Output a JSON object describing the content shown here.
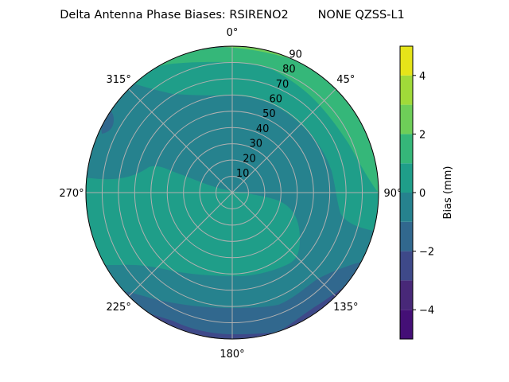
{
  "chart_data": {
    "type": "heatmap",
    "subtype": "polar-filled-contour",
    "title": "Delta Antenna Phase Biases: RSIRENO2        NONE QZSS-L1",
    "angular_ticks": [
      "0°",
      "45°",
      "90°",
      "135°",
      "180°",
      "225°",
      "270°",
      "315°"
    ],
    "radial_ticks": [
      10,
      20,
      30,
      40,
      50,
      60,
      70,
      80,
      90
    ],
    "radial_range": [
      0,
      90
    ],
    "grid": true,
    "colorbar": {
      "label": "Bias (mm)",
      "range": [
        -5,
        5
      ],
      "ticks": [
        -4,
        -2,
        0,
        2,
        4
      ],
      "tick_labels": [
        "−4",
        "−2",
        "0",
        "2",
        "4"
      ],
      "levels": [
        -5,
        -4,
        -3,
        -2,
        -1,
        0,
        1,
        2,
        3,
        4,
        5
      ],
      "colors": [
        "#440f76",
        "#482878",
        "#3e4989",
        "#31688e",
        "#26828e",
        "#1f9e89",
        "#35b779",
        "#6ece58",
        "#a0da39",
        "#e5e419"
      ],
      "colormap": "viridis"
    },
    "regions": [
      {
        "level": "-1..0",
        "description": "center, upper-left and right-center band",
        "color": "#26828e"
      },
      {
        "level": "0..1",
        "description": "lower-left / south sector and north-east ring",
        "color": "#1f9e89"
      },
      {
        "level": "1..2",
        "description": "north-east edge",
        "color": "#35b779"
      },
      {
        "level": "2..3",
        "description": "north edge",
        "color": "#6ece58"
      },
      {
        "level": "-2..-1",
        "description": "south edge and small west-north-west patch",
        "color": "#31688e"
      },
      {
        "level": "-3..-2",
        "description": "south-south-west edge",
        "color": "#3e4989"
      }
    ]
  }
}
